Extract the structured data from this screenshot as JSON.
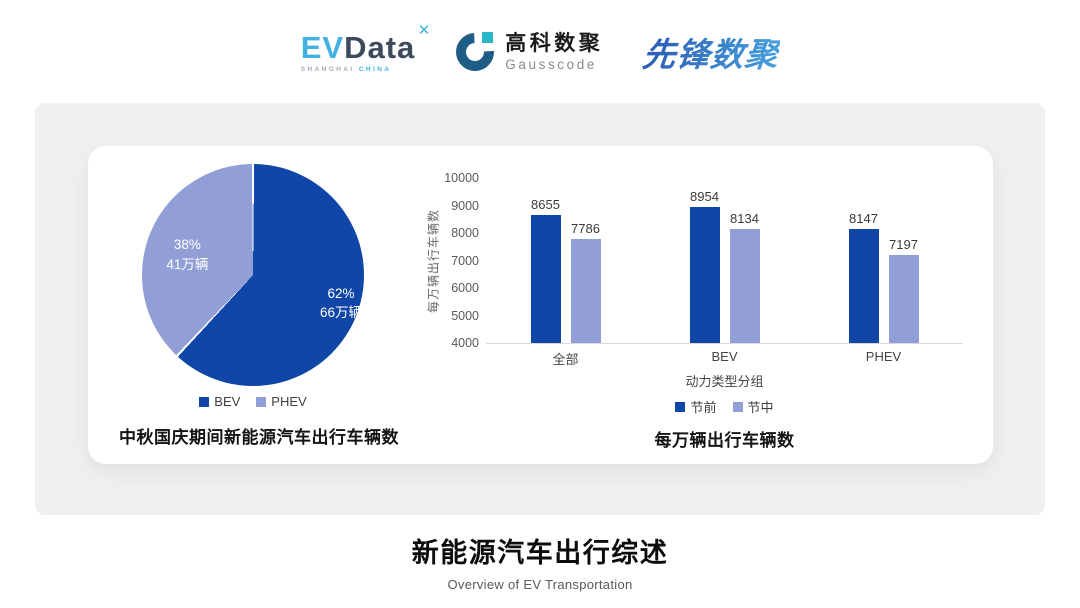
{
  "header": {
    "logos": {
      "evdata": {
        "part1": "EV",
        "part2": "Data",
        "mark_glyph": "✕",
        "sub1": "SHANGHAI",
        "sub2": "CHINA",
        "color_primary": "#41b1e3",
        "color_secondary": "#3d4a5c"
      },
      "gausscode": {
        "cn": "高科数聚",
        "en": "Gausscode",
        "color_ring": "#1f5c86",
        "color_accent": "#27b7c6"
      },
      "pioneer": {
        "text": "先锋数聚",
        "color_start": "#2a5cb4",
        "color_end": "#47a0dc"
      }
    }
  },
  "chart_data": [
    {
      "type": "pie",
      "title": "中秋国庆期间新能源汽车出行车辆数",
      "slices": [
        {
          "label": "BEV",
          "percent": 62,
          "percent_label": "62%",
          "value_label": "66万辆",
          "color": "#0f46a8"
        },
        {
          "label": "PHEV",
          "percent": 38,
          "percent_label": "38%",
          "value_label": "41万辆",
          "color": "#929fd6"
        }
      ],
      "start_angle_deg": 0,
      "legend_position": "bottom"
    },
    {
      "type": "bar",
      "title": "每万辆出行车辆数",
      "categories": [
        "全部",
        "BEV",
        "PHEV"
      ],
      "series": [
        {
          "name": "节前",
          "values": [
            8655,
            8954,
            8147
          ],
          "color": "#0f46a8"
        },
        {
          "name": "节中",
          "values": [
            7786,
            8134,
            7197
          ],
          "color": "#929fd6"
        }
      ],
      "xlabel": "动力类型分组",
      "ylabel": "每万辆出行车辆数",
      "ylim": [
        4000,
        10000
      ],
      "ytick_step": 1000,
      "grid": false,
      "legend_position": "bottom"
    }
  ],
  "footer": {
    "title": "新能源汽车出行综述",
    "subtitle": "Overview of EV Transportation"
  }
}
